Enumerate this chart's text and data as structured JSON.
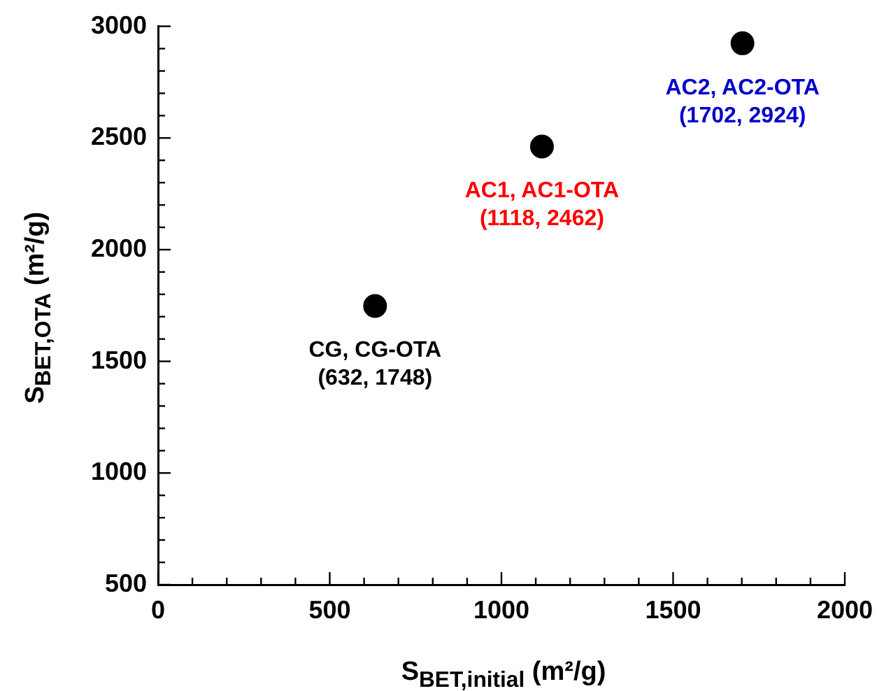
{
  "chart_data": {
    "type": "scatter",
    "xlabel": "S$_{BET,initial}$ (m²/g)",
    "ylabel": "S$_{BET,OTA}$ (m²/g)",
    "x": [
      632,
      1118,
      1702
    ],
    "series": [
      {
        "color": "#000000",
        "values": [
          1748,
          2462,
          2924
        ]
      }
    ],
    "marker": "circle",
    "grid": false,
    "legend": false,
    "xlim": [
      0,
      2000
    ],
    "ylim": [
      500,
      3000
    ],
    "xticks": [
      0,
      {
        "value": 100,
        "label": null
      },
      {
        "value": 200,
        "label": null
      },
      {
        "value": 300,
        "label": null
      },
      {
        "value": 400,
        "label": null
      },
      500,
      {
        "value": 600,
        "label": null
      },
      {
        "value": 700,
        "label": null
      },
      {
        "value": 800,
        "label": null
      },
      {
        "value": 900,
        "label": null
      },
      1000,
      {
        "value": 1100,
        "label": null
      },
      {
        "value": 1200,
        "label": null
      },
      {
        "value": 1300,
        "label": null
      },
      {
        "value": 1400,
        "label": null
      },
      1500,
      {
        "value": 1600,
        "label": null
      },
      {
        "value": 1700,
        "label": null
      },
      {
        "value": 1800,
        "label": null
      },
      {
        "value": 1900,
        "label": null
      },
      2000
    ],
    "yticks": [
      500,
      {
        "value": 600,
        "label": null
      },
      {
        "value": 700,
        "label": null
      },
      {
        "value": 800,
        "label": null
      },
      {
        "value": 900,
        "label": null
      },
      1000,
      {
        "value": 1100,
        "label": null
      },
      {
        "value": 1200,
        "label": null
      },
      {
        "value": 1300,
        "label": null
      },
      {
        "value": 1400,
        "label": null
      },
      1500,
      {
        "value": 1600,
        "label": null
      },
      {
        "value": 1700,
        "label": null
      },
      {
        "value": 1800,
        "label": null
      },
      {
        "value": 1900,
        "label": null
      },
      2000,
      {
        "value": 2100,
        "label": null
      },
      {
        "value": 2200,
        "label": null
      },
      {
        "value": 2300,
        "label": null
      },
      {
        "value": 2400,
        "label": null
      },
      2500,
      {
        "value": 2600,
        "label": null
      },
      {
        "value": 2700,
        "label": null
      },
      {
        "value": 2800,
        "label": null
      },
      {
        "value": 2900,
        "label": null
      },
      3000
    ],
    "annotations": [
      {
        "text": "CG, CG-OTA\n(632, 1748)",
        "x": 632,
        "y": 1748
      },
      {
        "text": "AC1, AC1-OTA\n(1118, 2462)",
        "x": 1118,
        "y": 2462
      },
      {
        "text": "AC2, AC2-OTA\n(1702, 2924)",
        "x": 1702,
        "y": 2924
      }
    ]
  }
}
